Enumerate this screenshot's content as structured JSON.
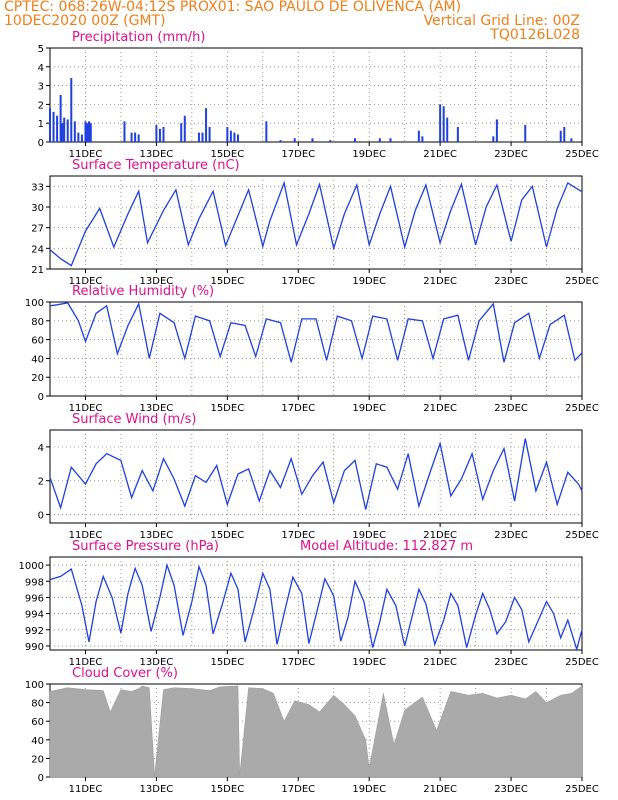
{
  "header": {
    "line1_left": "CPTEC:   068:26W-04:12S   PROX01: SAO PAULO DE OLIVENCA (AM)",
    "line2_left": "10DEC2020 00Z (GMT)",
    "line2_right": "Vertical Grid Line: 00Z",
    "line3_right": "TQ0126L028"
  },
  "date_labels": [
    "11DEC",
    "13DEC",
    "15DEC",
    "17DEC",
    "19DEC",
    "21DEC",
    "23DEC",
    "25DEC"
  ],
  "chart_data": [
    {
      "type": "bar",
      "title": "Precipitation (mm/h)",
      "ylim": [
        0,
        5
      ],
      "yticks": [
        0,
        1,
        2,
        3,
        4,
        5
      ],
      "x_days": [
        10.0,
        10.1,
        10.2,
        10.3,
        10.35,
        10.4,
        10.5,
        10.6,
        10.7,
        10.8,
        10.9,
        11.0,
        11.05,
        11.1,
        11.15,
        12.1,
        12.3,
        12.4,
        12.5,
        13.0,
        13.1,
        13.2,
        13.7,
        13.8,
        14.2,
        14.3,
        14.4,
        14.5,
        15.0,
        15.1,
        15.2,
        15.3,
        16.1,
        16.5,
        16.9,
        17.4,
        17.9,
        18.6,
        19.3,
        19.6,
        20.4,
        20.5,
        21.0,
        21.1,
        21.2,
        21.5,
        22.5,
        22.6,
        23.4,
        24.4,
        24.5,
        24.7
      ],
      "values": [
        1.8,
        1.6,
        1.4,
        2.5,
        1.0,
        1.3,
        1.2,
        3.4,
        1.1,
        0.5,
        0.4,
        1.1,
        1.0,
        1.1,
        1.0,
        1.1,
        0.5,
        0.5,
        0.4,
        0.9,
        0.7,
        0.8,
        1.0,
        1.4,
        0.5,
        0.5,
        1.8,
        0.8,
        0.8,
        0.6,
        0.5,
        0.4,
        1.1,
        0.1,
        0.2,
        0.2,
        0.1,
        0.2,
        0.2,
        0.2,
        0.6,
        0.3,
        2.0,
        1.9,
        1.3,
        0.8,
        0.3,
        1.2,
        0.9,
        0.6,
        0.8,
        0.2
      ]
    },
    {
      "type": "line",
      "title": "Surface Temperature (nC)",
      "ylim": [
        21,
        34.5
      ],
      "yticks": [
        21,
        24,
        27,
        30,
        33
      ],
      "x_days": [
        10.0,
        10.3,
        10.6,
        11.0,
        11.4,
        11.8,
        12.2,
        12.5,
        12.75,
        13.2,
        13.55,
        13.9,
        14.2,
        14.6,
        14.95,
        15.2,
        15.6,
        16.0,
        16.2,
        16.6,
        16.95,
        17.3,
        17.6,
        18.0,
        18.3,
        18.65,
        19.0,
        19.3,
        19.6,
        20.0,
        20.3,
        20.6,
        21.0,
        21.3,
        21.6,
        22.0,
        22.3,
        22.6,
        23.0,
        23.3,
        23.6,
        24.0,
        24.3,
        24.6,
        25.0
      ],
      "values": [
        23.8,
        22.5,
        21.5,
        26.5,
        29.8,
        24.2,
        29.0,
        32.3,
        24.8,
        29.5,
        32.5,
        24.5,
        28.3,
        32.3,
        24.4,
        27.5,
        32.5,
        24.3,
        28.0,
        33.5,
        24.5,
        29.0,
        33.3,
        24.0,
        29.0,
        33.2,
        24.5,
        29.0,
        33.0,
        24.2,
        29.5,
        33.2,
        24.8,
        29.5,
        33.3,
        24.5,
        30.0,
        33.2,
        25.0,
        31.0,
        33.0,
        24.2,
        29.8,
        33.5,
        32.2
      ]
    },
    {
      "type": "line",
      "title": "Relative Humidity (%)",
      "ylim": [
        0,
        100
      ],
      "yticks": [
        0,
        20,
        40,
        60,
        80,
        100
      ],
      "x_days": [
        10.0,
        10.2,
        10.5,
        10.8,
        11.0,
        11.3,
        11.6,
        11.9,
        12.2,
        12.5,
        12.8,
        13.1,
        13.5,
        13.8,
        14.1,
        14.5,
        14.8,
        15.1,
        15.5,
        15.8,
        16.1,
        16.5,
        16.8,
        17.1,
        17.5,
        17.8,
        18.1,
        18.5,
        18.8,
        19.1,
        19.5,
        19.8,
        20.1,
        20.5,
        20.8,
        21.1,
        21.5,
        21.8,
        22.1,
        22.5,
        22.8,
        23.1,
        23.5,
        23.8,
        24.1,
        24.5,
        24.8,
        25.0
      ],
      "values": [
        96,
        97,
        99,
        80,
        58,
        88,
        96,
        45,
        75,
        98,
        40,
        88,
        78,
        40,
        85,
        80,
        42,
        78,
        75,
        42,
        82,
        78,
        36,
        82,
        82,
        38,
        85,
        80,
        40,
        85,
        82,
        38,
        82,
        80,
        40,
        82,
        86,
        38,
        80,
        98,
        36,
        78,
        88,
        40,
        76,
        86,
        38,
        46
      ]
    },
    {
      "type": "line",
      "title": "Surface Wind (m/s)",
      "ylim": [
        -0.5,
        5
      ],
      "yticks": [
        0,
        2,
        4
      ],
      "x_days": [
        10.0,
        10.3,
        10.6,
        11.0,
        11.3,
        11.6,
        12.0,
        12.3,
        12.6,
        12.9,
        13.2,
        13.5,
        13.8,
        14.1,
        14.4,
        14.7,
        15.0,
        15.3,
        15.6,
        15.9,
        16.2,
        16.5,
        16.8,
        17.1,
        17.4,
        17.7,
        18.0,
        18.3,
        18.6,
        18.9,
        19.2,
        19.5,
        19.8,
        20.1,
        20.4,
        20.7,
        21.0,
        21.3,
        21.6,
        21.9,
        22.2,
        22.5,
        22.8,
        23.1,
        23.4,
        23.7,
        24.0,
        24.3,
        24.6,
        24.9,
        25.0
      ],
      "values": [
        2.2,
        0.4,
        2.8,
        1.8,
        3.0,
        3.6,
        3.2,
        1.0,
        2.6,
        1.4,
        3.3,
        2.1,
        0.5,
        2.3,
        1.9,
        2.9,
        0.6,
        2.4,
        2.7,
        0.8,
        2.6,
        1.6,
        3.3,
        1.2,
        2.3,
        3.1,
        0.7,
        2.6,
        3.2,
        0.3,
        3.0,
        2.8,
        1.5,
        3.6,
        0.5,
        2.4,
        4.2,
        1.1,
        2.1,
        3.6,
        0.9,
        2.6,
        3.9,
        0.8,
        4.5,
        1.4,
        3.1,
        0.6,
        2.5,
        1.8,
        1.4
      ]
    },
    {
      "type": "line",
      "title": "Surface Pressure (hPa)",
      "annotation": "Model Altitude: 112.827 m",
      "ylim": [
        989.5,
        1001
      ],
      "yticks": [
        990,
        992,
        994,
        996,
        998,
        1000
      ],
      "x_days": [
        10.0,
        10.3,
        10.6,
        10.9,
        11.1,
        11.3,
        11.5,
        11.75,
        12.0,
        12.2,
        12.4,
        12.6,
        12.85,
        13.1,
        13.3,
        13.5,
        13.75,
        14.0,
        14.2,
        14.4,
        14.6,
        14.85,
        15.1,
        15.3,
        15.5,
        15.75,
        16.0,
        16.2,
        16.4,
        16.6,
        16.85,
        17.1,
        17.3,
        17.5,
        17.75,
        18.0,
        18.2,
        18.4,
        18.6,
        18.85,
        19.1,
        19.3,
        19.5,
        19.75,
        20.0,
        20.2,
        20.4,
        20.6,
        20.85,
        21.1,
        21.3,
        21.5,
        21.75,
        22.0,
        22.2,
        22.4,
        22.6,
        22.85,
        23.1,
        23.3,
        23.5,
        23.75,
        24.0,
        24.2,
        24.4,
        24.6,
        24.85,
        25.0
      ],
      "values": [
        998.2,
        998.6,
        999.5,
        995.0,
        990.5,
        995.5,
        998.6,
        996.0,
        991.6,
        996.5,
        999.6,
        997.5,
        991.8,
        996.0,
        1000.0,
        997.5,
        991.3,
        995.5,
        999.8,
        997.5,
        991.5,
        995.0,
        999.0,
        997.0,
        990.5,
        994.5,
        999.0,
        997.0,
        990.2,
        994.0,
        998.5,
        996.5,
        990.3,
        993.8,
        998.3,
        996.2,
        990.6,
        993.5,
        998.0,
        995.5,
        989.8,
        993.0,
        997.0,
        995.0,
        990.0,
        993.5,
        997.0,
        995.2,
        990.2,
        993.2,
        996.5,
        995.0,
        989.8,
        993.8,
        996.5,
        994.5,
        991.5,
        993.0,
        996.0,
        994.5,
        990.5,
        993.0,
        995.5,
        994.0,
        991.0,
        993.2,
        989.6,
        992.0
      ]
    },
    {
      "type": "area",
      "title": "Cloud Cover (%)",
      "ylim": [
        0,
        100
      ],
      "yticks": [
        0,
        20,
        40,
        60,
        80,
        100
      ],
      "x_days": [
        10.0,
        10.5,
        11.0,
        11.5,
        11.7,
        12.0,
        12.3,
        12.5,
        12.6,
        12.8,
        12.95,
        13.2,
        13.5,
        14.0,
        14.5,
        14.8,
        15.3,
        15.35,
        15.6,
        16.0,
        16.3,
        16.6,
        16.9,
        17.3,
        17.6,
        18.0,
        18.3,
        18.6,
        18.9,
        19.0,
        19.4,
        19.7,
        20.0,
        20.5,
        20.9,
        21.3,
        21.8,
        22.2,
        22.6,
        23.0,
        23.4,
        23.7,
        24.0,
        24.4,
        24.7,
        25.0
      ],
      "values": [
        92,
        96,
        94,
        93,
        70,
        94,
        92,
        95,
        98,
        96,
        2,
        94,
        96,
        95,
        93,
        97,
        98,
        2,
        96,
        95,
        90,
        60,
        82,
        78,
        70,
        88,
        78,
        66,
        40,
        10,
        90,
        35,
        72,
        86,
        50,
        92,
        88,
        90,
        85,
        88,
        84,
        92,
        80,
        88,
        90,
        98
      ]
    }
  ]
}
